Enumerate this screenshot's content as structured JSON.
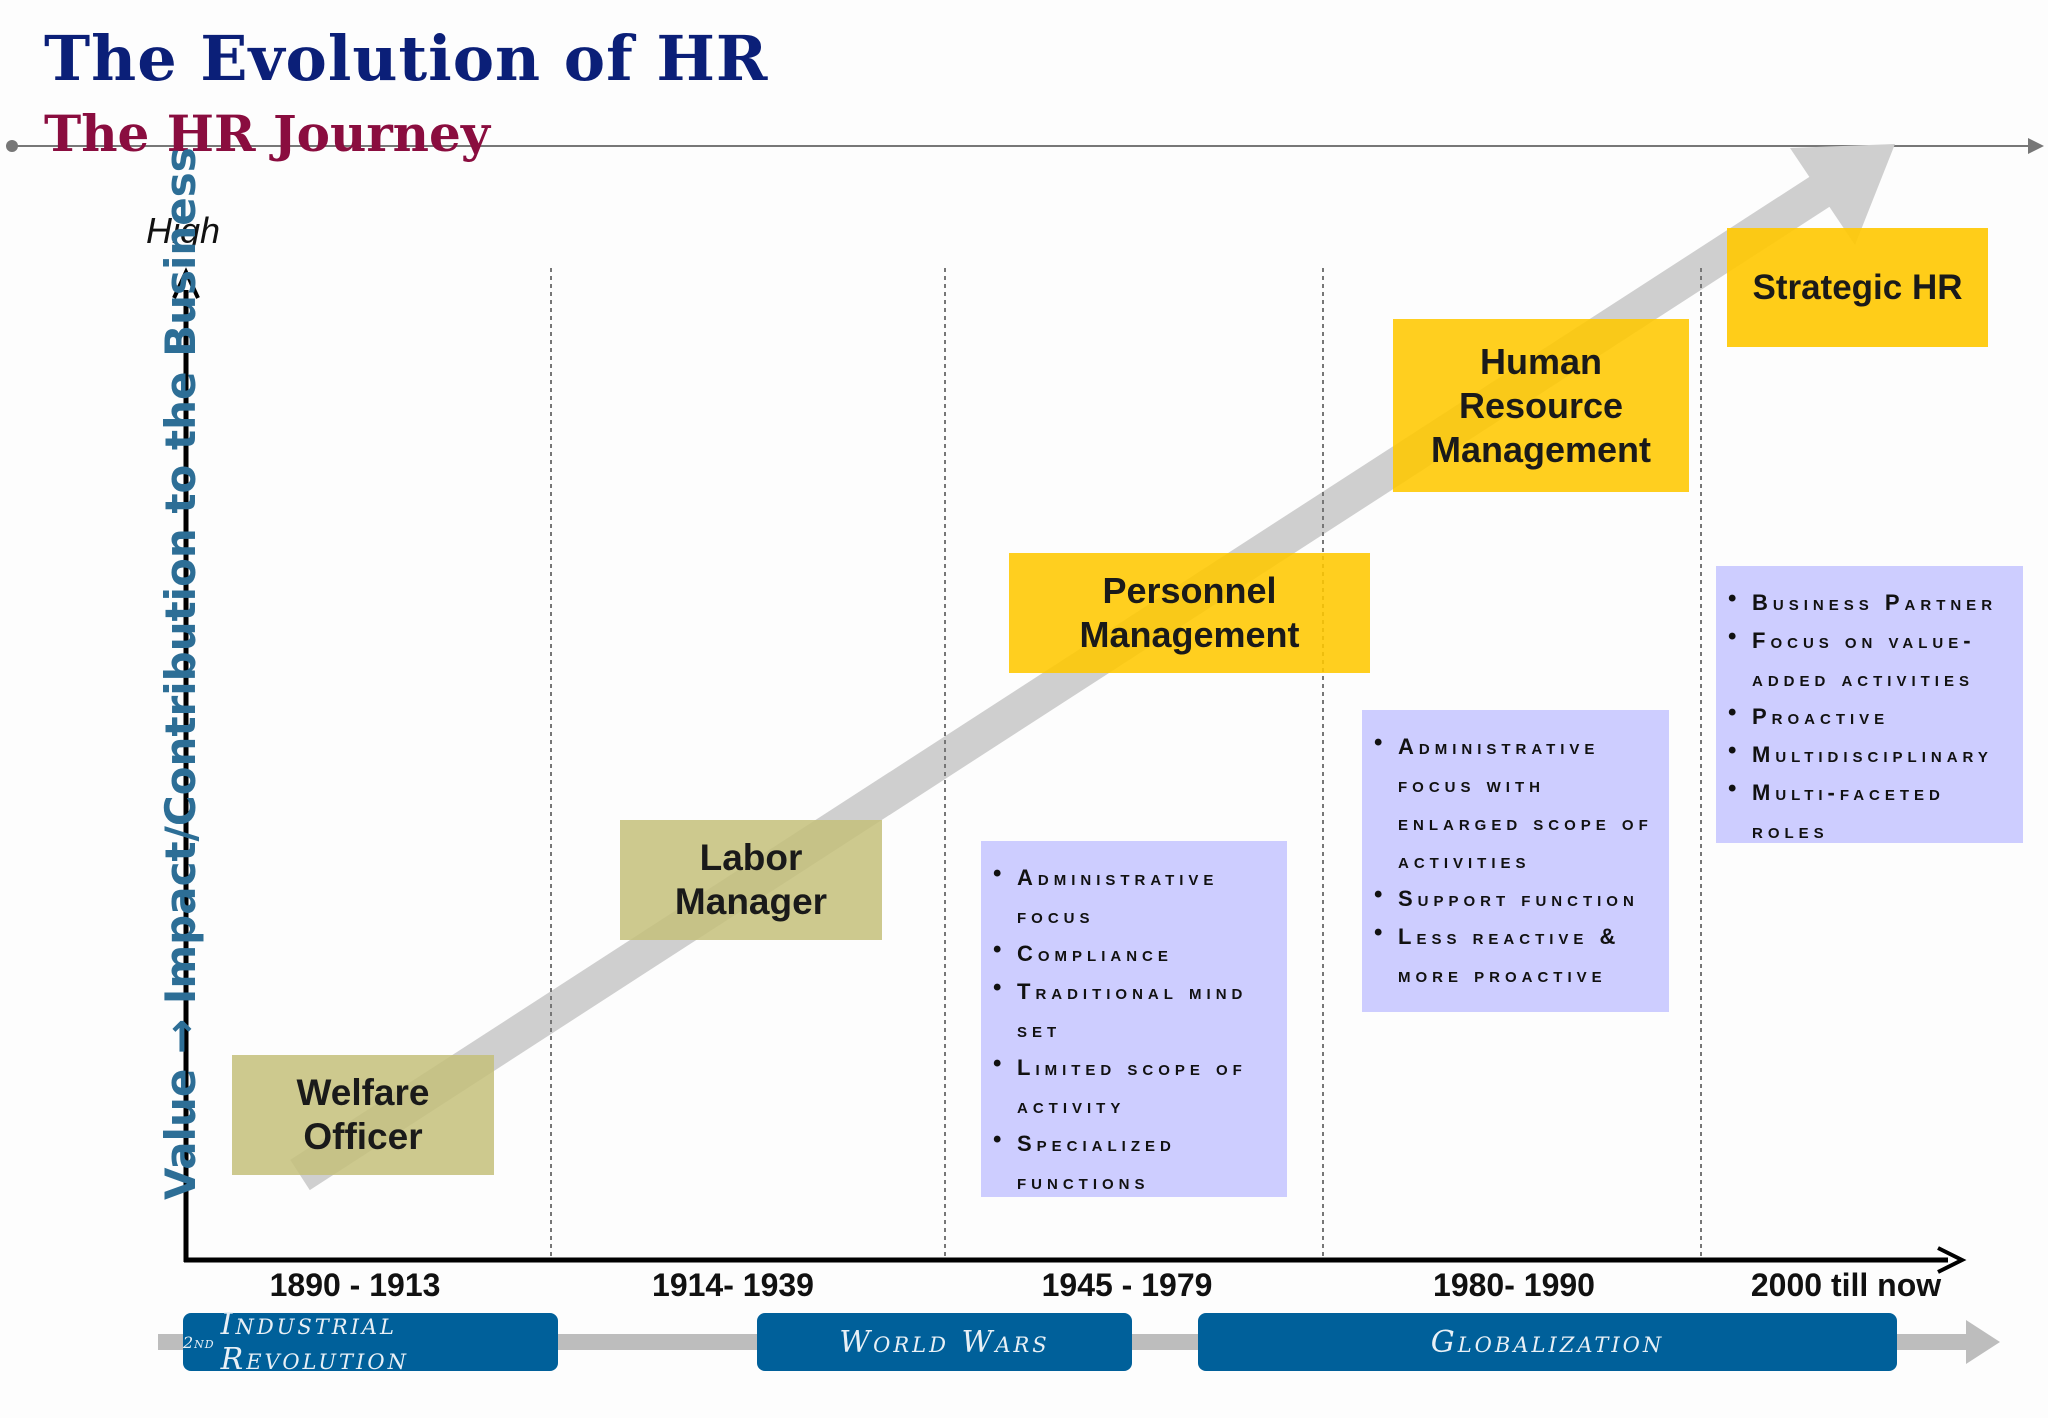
{
  "header": {
    "title": "The Evolution of HR",
    "subtitle": "The HR Journey"
  },
  "axes": {
    "y_label": "Value → Impact/Contribution to the Business",
    "y_top_label": "High"
  },
  "periods": [
    "1890 - 1913",
    "1914- 1939",
    "1945 - 1979",
    "1980- 1990",
    "2000 till now"
  ],
  "stages": [
    {
      "lines": [
        "Welfare",
        "Officer"
      ],
      "color": "#c4c07a"
    },
    {
      "lines": [
        "Labor",
        "Manager"
      ],
      "color": "#c4c07a"
    },
    {
      "lines": [
        "Personnel",
        "Management"
      ],
      "color": "#ffc800"
    },
    {
      "lines": [
        "Human",
        "Resource",
        "Management"
      ],
      "color": "#ffc800"
    },
    {
      "lines": [
        "Strategic HR"
      ],
      "color": "#ffc800"
    }
  ],
  "feature_boxes": [
    {
      "stage": "Personnel Management",
      "items": [
        "Administrative focus",
        "Compliance",
        "Traditional mind set",
        "Limited scope of activity",
        "Specialized functions"
      ]
    },
    {
      "stage": "Human Resource Management",
      "items": [
        "Administrative focus with enlarged scope of activities",
        "Support function",
        "Less reactive & more proactive"
      ]
    },
    {
      "stage": "Strategic HR",
      "items": [
        "Business Partner",
        "Focus on value-added activities",
        "Proactive",
        "Multidisciplinary",
        "Multi-faceted roles"
      ]
    }
  ],
  "eras": [
    {
      "sup": "2nd",
      "label": "Industrial Revolution"
    },
    {
      "sup": "",
      "label": "World Wars"
    },
    {
      "sup": "",
      "label": "Globalization"
    }
  ],
  "colors": {
    "title": "#0b1f78",
    "subtitle": "#8a0d3f",
    "y_axis_label": "#2d6e96",
    "era_band": "#00609a",
    "feature_box": "#c4c4ff"
  }
}
